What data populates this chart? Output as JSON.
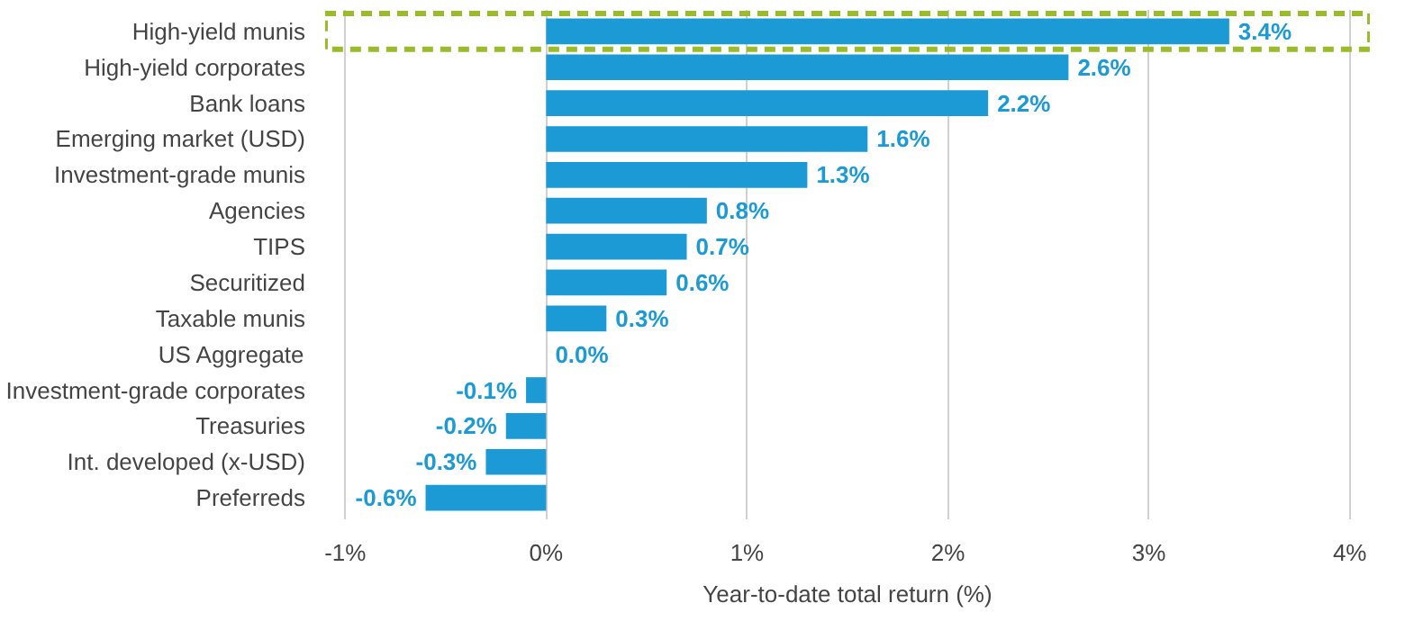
{
  "chart_data": {
    "type": "bar",
    "orientation": "horizontal",
    "xlabel": "Year-to-date total return (%)",
    "categories": [
      "High-yield munis",
      "High-yield corporates",
      "Bank loans",
      "Emerging market (USD)",
      "Investment-grade munis",
      "Agencies",
      "TIPS",
      "Securitized",
      "Taxable munis",
      "US Aggregate",
      "Investment-grade corporates",
      "Treasuries",
      "Int. developed (x-USD)",
      "Preferreds"
    ],
    "values": [
      3.4,
      2.6,
      2.2,
      1.6,
      1.3,
      0.8,
      0.7,
      0.6,
      0.3,
      0.0,
      -0.1,
      -0.2,
      -0.3,
      -0.6
    ],
    "value_labels": [
      "3.4%",
      "2.6%",
      "2.2%",
      "1.6%",
      "1.3%",
      "0.8%",
      "0.7%",
      "0.6%",
      "0.3%",
      "0.0%",
      "-0.1%",
      "-0.2%",
      "-0.3%",
      "-0.6%"
    ],
    "color": "#1b9ad6",
    "xlim": [
      -1.1,
      4.1
    ],
    "xticks": [
      {
        "value": -1,
        "label": "-1%"
      },
      {
        "value": 0,
        "label": "0%"
      },
      {
        "value": 1,
        "label": "1%"
      },
      {
        "value": 2,
        "label": "2%"
      },
      {
        "value": 3,
        "label": "3%"
      },
      {
        "value": 4,
        "label": "4%"
      }
    ],
    "grid": "x"
  }
}
